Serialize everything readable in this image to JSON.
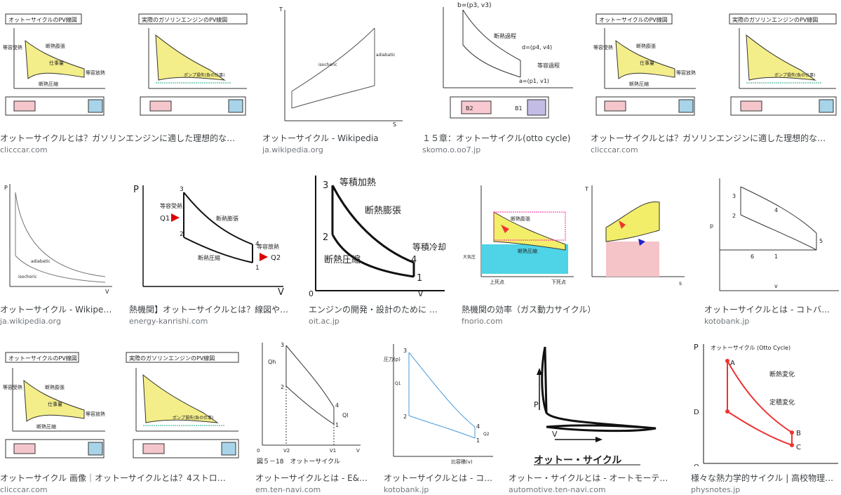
{
  "results": [
    {
      "title": "オットーサイクルとは？ガソリンエンジンに適した理想的な…",
      "source": "clicccar.com",
      "labels": {
        "a": "オットーサイクルのPV線図",
        "b": "実際のガソリンエンジンのPV線図",
        "c": "仕事量",
        "d": "断熱圧縮",
        "e": "等容放熱",
        "f": "等容受熱",
        "g": "断熱膨張",
        "h": "ポンプ損失(負の仕事)"
      }
    },
    {
      "title": "オットーサイクル - Wikipedia",
      "source": "ja.wikipedia.org",
      "labels": {
        "a": "T",
        "b": "S",
        "c": "isochoric",
        "d": "adiabatic"
      }
    },
    {
      "title": "１５章：オットーサイクル(otto cycle)",
      "source": "skomo.o.oo7.jp",
      "labels": {
        "a": "b=(p3, v3)",
        "b": "d=(p4, v4)",
        "c": "a=(p1, v1)",
        "d": "断熱過程",
        "e": "等容過程",
        "f": "B2",
        "g": "B1"
      }
    },
    {
      "title": "オットーサイクルとは？ガソリンエンジンに適した理想的な…",
      "source": "clicccar.com",
      "labels": {
        "a": "オットーサイクルのPV線図",
        "b": "実際のガソリンエンジンのPV線図",
        "c": "仕事量",
        "d": "断熱圧縮",
        "e": "等容放熱",
        "f": "等容受熱",
        "g": "断熱膨張",
        "h": "ポンプ損失(負の仕事)"
      }
    },
    {
      "title": "オットーサイクル - Wikipe…",
      "source": "ja.wikipedia.org",
      "labels": {
        "a": "P",
        "b": "V",
        "c": "adiabatic",
        "d": "isochoric"
      }
    },
    {
      "title": "熱機関】オットーサイクルとは？線図や…",
      "source": "energy-kanrishi.com",
      "labels": {
        "a": "P",
        "b": "V",
        "c": "Q1",
        "d": "Q2",
        "e": "等容受熱",
        "f": "等容放熱",
        "g": "断熱膨張",
        "h": "断熱圧縮",
        "n1": "1",
        "n2": "2",
        "n3": "3",
        "n4": "4"
      }
    },
    {
      "title": "エンジンの開発・設計のために …",
      "source": "oit.ac.jp",
      "labels": {
        "a": "等積加熱",
        "b": "断熱膨張",
        "c": "等積冷却",
        "d": "断熱圧縮",
        "e": "v",
        "f": "0",
        "n1": "1",
        "n2": "2",
        "n3": "3",
        "n4": "4"
      }
    },
    {
      "title": "熱機関の効率（ガス動力サイクル）",
      "source": "fnorio.com",
      "labels": {
        "a": "断熱膨張",
        "b": "断熱圧縮",
        "c": "大気圧",
        "d": "上死点",
        "e": "下死点",
        "f": "T",
        "g": "s"
      }
    },
    {
      "title": "オットーサイクルとは - コトバ…",
      "source": "kotobank.jp",
      "labels": {
        "a": "p",
        "b": "v",
        "n1": "1",
        "n2": "2",
        "n3": "3",
        "n4": "4",
        "n5": "5",
        "n6": "6"
      }
    },
    {
      "title": "オットーサイクル 画像｜オットーサイクルとは？4ストロ…",
      "source": "clicccar.com",
      "labels": {
        "a": "オットーサイクルのPV線図",
        "b": "実際のガソリンエンジンのPV線図",
        "c": "仕事量",
        "d": "断熱圧縮",
        "e": "等容放熱",
        "f": "等容受熱",
        "g": "断熱膨張",
        "h": "ポンプ損失(負の仕事)"
      }
    },
    {
      "title": "オットーサイクルとは - E&…",
      "source": "em.ten-navi.com",
      "labels": {
        "a": "図５－18　オットーサイクル",
        "b": "V",
        "c": "Qh",
        "d": "Ql",
        "e": "V2",
        "f": "V1",
        "g": "0",
        "n1": "1",
        "n2": "2",
        "n3": "3",
        "n4": "4"
      }
    },
    {
      "title": "オットーサイクルとは - コ…",
      "source": "kotobank.jp",
      "labels": {
        "a": "比容積(v)",
        "b": "圧力(p)",
        "c": "Q1",
        "d": "Q2",
        "n1": "1",
        "n2": "2",
        "n3": "3",
        "n4": "4"
      }
    },
    {
      "title": "オットー・サイクルとは - オートモーテ…",
      "source": "automotive.ten-navi.com",
      "labels": {
        "a": "P",
        "b": "V",
        "c": "オットー・サイクル"
      }
    },
    {
      "title": "様々な熱力学的サイクル | 高校物理…",
      "source": "physnotes.jp",
      "labels": {
        "a": "オットーサイクル (Otto Cycle)",
        "b": "断熱変化",
        "c": "定積変化",
        "d": "P",
        "e": "O",
        "f": "A",
        "g": "B",
        "h": "C",
        "i": "D"
      }
    }
  ]
}
